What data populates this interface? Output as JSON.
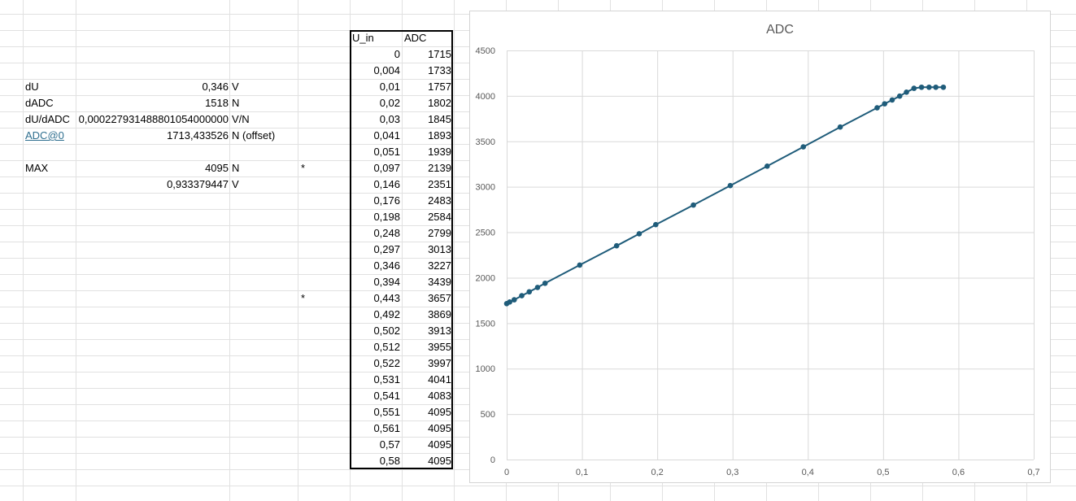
{
  "sheet": {
    "left_block": {
      "dU": {
        "label": "dU",
        "value": "0,346",
        "unit": "V"
      },
      "dADC": {
        "label": "dADC",
        "value": "1518",
        "unit": "N"
      },
      "dU_dADC": {
        "label": "dU/dADC",
        "value": "0,000227931488801054000000",
        "unit": "V/N"
      },
      "adc0": {
        "label": "ADC@0",
        "value": "1713,433526",
        "unit": "N (offset)"
      },
      "max": {
        "label": "MAX",
        "value": "4095",
        "unit": "N",
        "marker": "*"
      },
      "max_v": {
        "value": "0,933379447",
        "unit": "V"
      },
      "marker2": "*"
    },
    "table": {
      "headers": [
        "U_in",
        "ADC"
      ],
      "rows": [
        [
          "0",
          "1715"
        ],
        [
          "0,004",
          "1733"
        ],
        [
          "0,01",
          "1757"
        ],
        [
          "0,02",
          "1802"
        ],
        [
          "0,03",
          "1845"
        ],
        [
          "0,041",
          "1893"
        ],
        [
          "0,051",
          "1939"
        ],
        [
          "0,097",
          "2139"
        ],
        [
          "0,146",
          "2351"
        ],
        [
          "0,176",
          "2483"
        ],
        [
          "0,198",
          "2584"
        ],
        [
          "0,248",
          "2799"
        ],
        [
          "0,297",
          "3013"
        ],
        [
          "0,346",
          "3227"
        ],
        [
          "0,394",
          "3439"
        ],
        [
          "0,443",
          "3657"
        ],
        [
          "0,492",
          "3869"
        ],
        [
          "0,502",
          "3913"
        ],
        [
          "0,512",
          "3955"
        ],
        [
          "0,522",
          "3997"
        ],
        [
          "0,531",
          "4041"
        ],
        [
          "0,541",
          "4083"
        ],
        [
          "0,551",
          "4095"
        ],
        [
          "0,561",
          "4095"
        ],
        [
          "0,57",
          "4095"
        ],
        [
          "0,58",
          "4095"
        ]
      ]
    }
  },
  "chart_data": {
    "type": "scatter",
    "title": "ADC",
    "xlabel": "",
    "ylabel": "",
    "xlim": [
      0,
      0.7
    ],
    "ylim": [
      0,
      4500
    ],
    "x_ticks": [
      "0",
      "0,1",
      "0,2",
      "0,3",
      "0,4",
      "0,5",
      "0,6",
      "0,7"
    ],
    "y_ticks": [
      "0",
      "500",
      "1000",
      "1500",
      "2000",
      "2500",
      "3000",
      "3500",
      "4000",
      "4500"
    ],
    "grid": true,
    "legend": "none",
    "color": "#1f5c7a",
    "series": [
      {
        "x": [
          0,
          0.004,
          0.01,
          0.02,
          0.03,
          0.041,
          0.051,
          0.097,
          0.146,
          0.176,
          0.198,
          0.248,
          0.297,
          0.346,
          0.394,
          0.443,
          0.492,
          0.502,
          0.512,
          0.522,
          0.531,
          0.541,
          0.551,
          0.561,
          0.57,
          0.58
        ],
        "y": [
          1715,
          1733,
          1757,
          1802,
          1845,
          1893,
          1939,
          2139,
          2351,
          2483,
          2584,
          2799,
          3013,
          3227,
          3439,
          3657,
          3869,
          3913,
          3955,
          3997,
          4041,
          4083,
          4095,
          4095,
          4095,
          4095
        ]
      }
    ]
  }
}
